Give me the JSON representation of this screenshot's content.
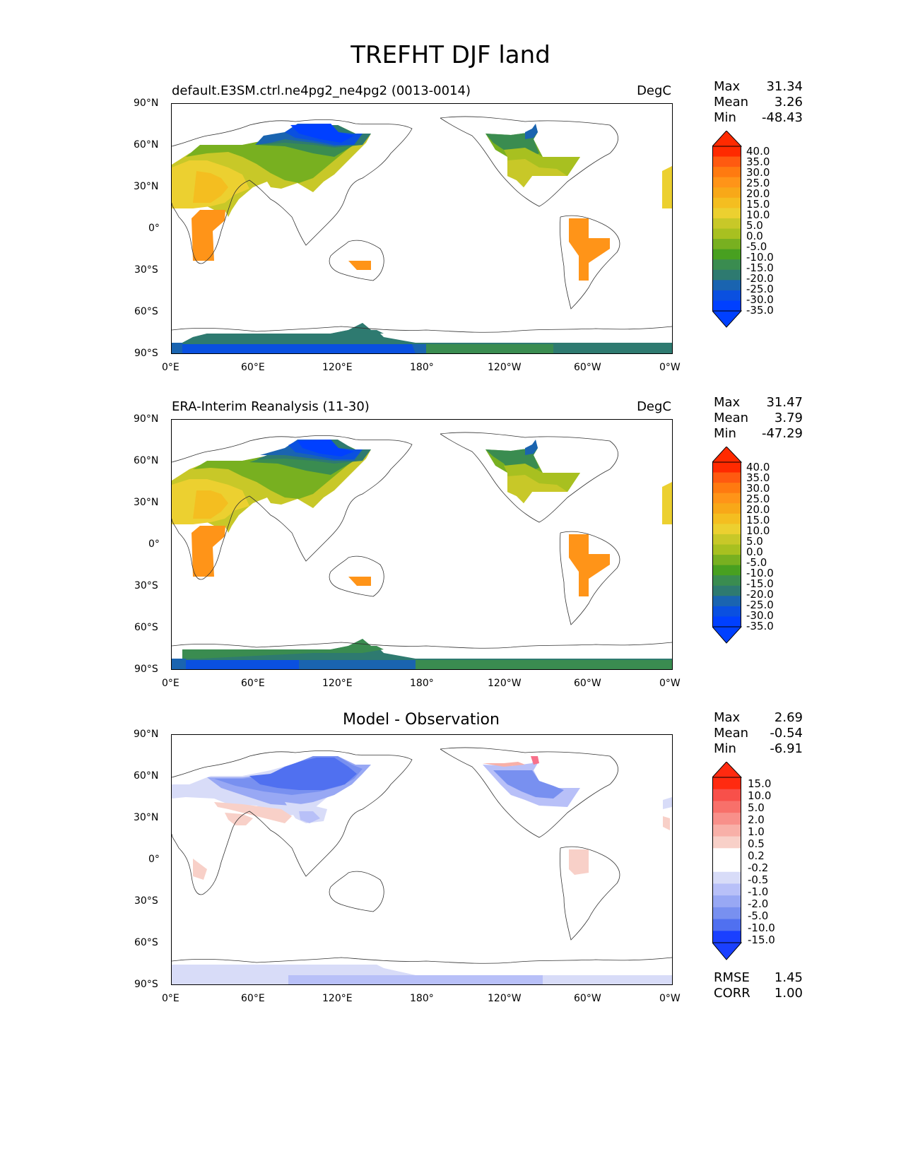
{
  "title": "TREFHT DJF land",
  "panels": [
    {
      "id": "model",
      "title_left": "default.E3SM.ctrl.ne4pg2_ne4pg2 (0013-0014)",
      "title_right": "DegC",
      "title_center": "",
      "stats": {
        "max_label": "Max",
        "max": "31.34",
        "mean_label": "Mean",
        "mean": "3.26",
        "min_label": "Min",
        "min": "-48.43"
      },
      "colorbar": [
        "40.0",
        "35.0",
        "30.0",
        "25.0",
        "20.0",
        "15.0",
        "10.0",
        "5.0",
        "0.0",
        "-5.0",
        "-10.0",
        "-15.0",
        "-20.0",
        "-25.0",
        "-30.0",
        "-35.0"
      ]
    },
    {
      "id": "obs",
      "title_left": "ERA-Interim Reanalysis (11-30)",
      "title_right": "DegC",
      "title_center": "",
      "stats": {
        "max_label": "Max",
        "max": "31.47",
        "mean_label": "Mean",
        "mean": "3.79",
        "min_label": "Min",
        "min": "-47.29"
      },
      "colorbar": [
        "40.0",
        "35.0",
        "30.0",
        "25.0",
        "20.0",
        "15.0",
        "10.0",
        "5.0",
        "0.0",
        "-5.0",
        "-10.0",
        "-15.0",
        "-20.0",
        "-25.0",
        "-30.0",
        "-35.0"
      ]
    },
    {
      "id": "diff",
      "title_left": "",
      "title_right": "",
      "title_center": "Model - Observation",
      "stats": {
        "max_label": "Max",
        "max": "2.69",
        "mean_label": "Mean",
        "mean": "-0.54",
        "min_label": "Min",
        "min": "-6.91"
      },
      "colorbar": [
        "15.0",
        "10.0",
        "5.0",
        "2.0",
        "1.0",
        "0.5",
        "0.2",
        "-0.2",
        "-0.5",
        "-1.0",
        "-2.0",
        "-5.0",
        "-10.0",
        "-15.0"
      ],
      "metrics": {
        "rmse_label": "RMSE",
        "rmse": "1.45",
        "corr_label": "CORR",
        "corr": "1.00"
      }
    }
  ],
  "axes": {
    "lat_ticks": [
      "90°N",
      "60°N",
      "30°N",
      "0°",
      "30°S",
      "60°S",
      "90°S"
    ],
    "lon_ticks": [
      "0°E",
      "60°E",
      "120°E",
      "180°",
      "120°W",
      "60°W",
      "0°W"
    ]
  },
  "colors": {
    "abs_scale": [
      "#ff2a00",
      "#ff5a10",
      "#ff7a10",
      "#ff9418",
      "#f8a818",
      "#f4be20",
      "#ecd030",
      "#c8c828",
      "#a8c020",
      "#78b020",
      "#48a020",
      "#3a8c50",
      "#2e7a70",
      "#1a64b0",
      "#0a50e0",
      "#0040ff"
    ],
    "diff_scale": [
      "#ff2a10",
      "#f8504a",
      "#f8706a",
      "#f8908a",
      "#f8b0a8",
      "#f8d0c8",
      "#ffffff",
      "#ffffff",
      "#d8dcf8",
      "#b8c0f8",
      "#98a8f4",
      "#7890f0",
      "#5070f0",
      "#1a40ff"
    ]
  }
}
